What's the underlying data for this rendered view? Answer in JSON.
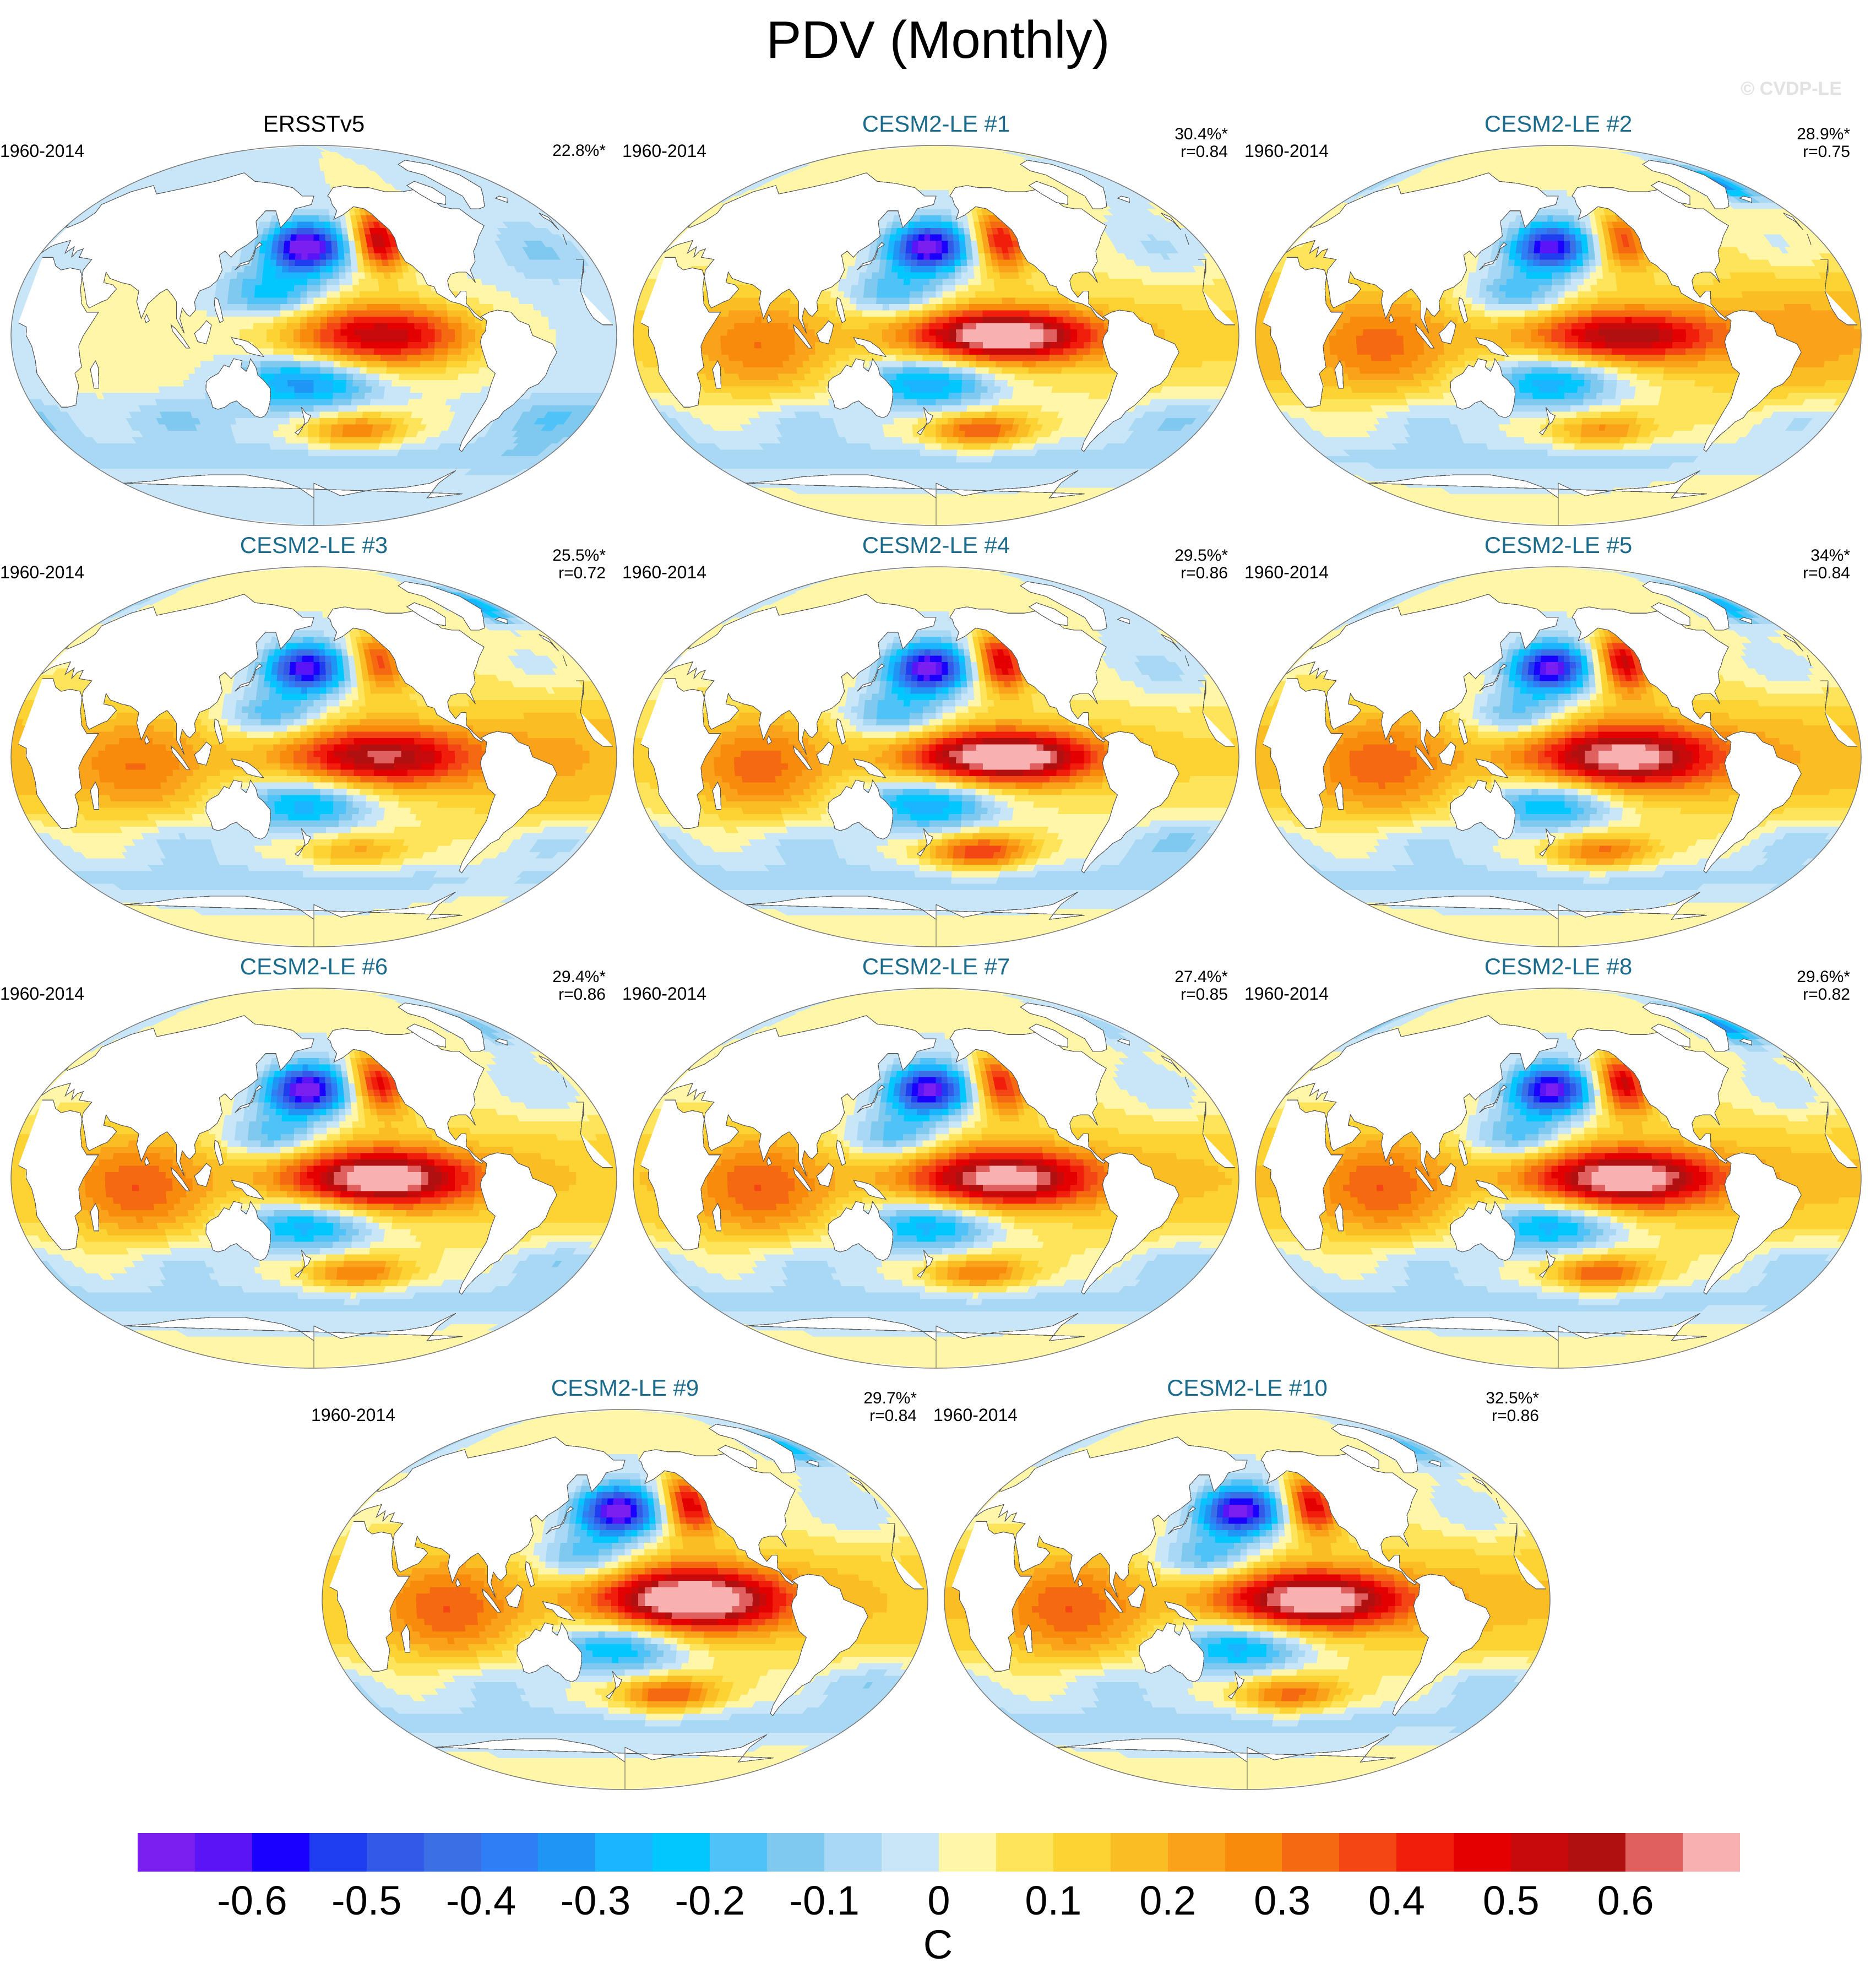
{
  "figure": {
    "title": "PDV (Monthly)",
    "watermark": "© CVDP-LE"
  },
  "panels": [
    {
      "title": "ERSSTv5",
      "kind": "obs",
      "period": "1960-2014",
      "pct": "22.8%*",
      "corr": "",
      "pattern": {
        "np_cold": 0.75,
        "eq_warm": 0.55,
        "np_arc_warm": 0.55,
        "sp_warm": 0.3,
        "indian_warm": 0.05,
        "atl_base": -0.02,
        "tropics_warm": 0.0,
        "eq_width": 11,
        "arctic_cold": 0.0
      }
    },
    {
      "title": "CESM2-LE #1",
      "kind": "model",
      "period": "1960-2014",
      "pct": "30.4%*",
      "corr": "r=0.84",
      "pattern": {
        "np_cold": 0.72,
        "eq_warm": 0.7,
        "np_arc_warm": 0.45,
        "sp_warm": 0.35,
        "indian_warm": 0.22,
        "atl_base": 0.03,
        "tropics_warm": 0.08,
        "eq_width": 9,
        "arctic_cold": 0.05
      }
    },
    {
      "title": "CESM2-LE #2",
      "kind": "model",
      "period": "1960-2014",
      "pct": "28.9%*",
      "corr": "r=0.75",
      "pattern": {
        "np_cold": 0.66,
        "eq_warm": 0.5,
        "np_arc_warm": 0.35,
        "sp_warm": 0.25,
        "indian_warm": 0.22,
        "atl_base": 0.12,
        "tropics_warm": 0.1,
        "eq_width": 9,
        "arctic_cold": 0.35
      }
    },
    {
      "title": "CESM2-LE #3",
      "kind": "model",
      "period": "1960-2014",
      "pct": "25.5%*",
      "corr": "r=0.72",
      "pattern": {
        "np_cold": 0.68,
        "eq_warm": 0.52,
        "np_arc_warm": 0.35,
        "sp_warm": 0.2,
        "indian_warm": 0.2,
        "atl_base": 0.1,
        "tropics_warm": 0.1,
        "eq_width": 10,
        "arctic_cold": 0.3
      }
    },
    {
      "title": "CESM2-LE #4",
      "kind": "model",
      "period": "1960-2014",
      "pct": "29.5%*",
      "corr": "r=0.86",
      "pattern": {
        "np_cold": 0.72,
        "eq_warm": 0.72,
        "np_arc_warm": 0.5,
        "sp_warm": 0.4,
        "indian_warm": 0.25,
        "atl_base": 0.02,
        "tropics_warm": 0.08,
        "eq_width": 9,
        "arctic_cold": 0.05
      }
    },
    {
      "title": "CESM2-LE #5",
      "kind": "model",
      "period": "1960-2014",
      "pct": "34%*",
      "corr": "r=0.84",
      "pattern": {
        "np_cold": 0.7,
        "eq_warm": 0.6,
        "np_arc_warm": 0.5,
        "sp_warm": 0.3,
        "indian_warm": 0.22,
        "atl_base": 0.06,
        "tropics_warm": 0.12,
        "eq_width": 11,
        "arctic_cold": 0.3
      }
    },
    {
      "title": "CESM2-LE #6",
      "kind": "model",
      "period": "1960-2014",
      "pct": "29.4%*",
      "corr": "r=0.86",
      "pattern": {
        "np_cold": 0.74,
        "eq_warm": 0.66,
        "np_arc_warm": 0.45,
        "sp_warm": 0.3,
        "indian_warm": 0.25,
        "atl_base": 0.04,
        "tropics_warm": 0.1,
        "eq_width": 10,
        "arctic_cold": 0.15
      }
    },
    {
      "title": "CESM2-LE #7",
      "kind": "model",
      "period": "1960-2014",
      "pct": "27.4%*",
      "corr": "r=0.85",
      "pattern": {
        "np_cold": 0.7,
        "eq_warm": 0.62,
        "np_arc_warm": 0.42,
        "sp_warm": 0.3,
        "indian_warm": 0.25,
        "atl_base": 0.05,
        "tropics_warm": 0.1,
        "eq_width": 10,
        "arctic_cold": 0.1
      }
    },
    {
      "title": "CESM2-LE #8",
      "kind": "model",
      "period": "1960-2014",
      "pct": "29.6%*",
      "corr": "r=0.82",
      "pattern": {
        "np_cold": 0.7,
        "eq_warm": 0.66,
        "np_arc_warm": 0.5,
        "sp_warm": 0.35,
        "indian_warm": 0.25,
        "atl_base": 0.06,
        "tropics_warm": 0.1,
        "eq_width": 10,
        "arctic_cold": 0.35
      }
    },
    {
      "title": "CESM2-LE #9",
      "kind": "model",
      "period": "1960-2014",
      "pct": "29.7%*",
      "corr": "r=0.84",
      "pattern": {
        "np_cold": 0.74,
        "eq_warm": 0.72,
        "np_arc_warm": 0.48,
        "sp_warm": 0.35,
        "indian_warm": 0.25,
        "atl_base": 0.04,
        "tropics_warm": 0.1,
        "eq_width": 11,
        "arctic_cold": 0.25
      }
    },
    {
      "title": "CESM2-LE #10",
      "kind": "model",
      "period": "1960-2014",
      "pct": "32.5%*",
      "corr": "r=0.86",
      "pattern": {
        "np_cold": 0.72,
        "eq_warm": 0.66,
        "np_arc_warm": 0.48,
        "sp_warm": 0.32,
        "indian_warm": 0.25,
        "atl_base": 0.06,
        "tropics_warm": 0.1,
        "eq_width": 10,
        "arctic_cold": 0.2
      }
    }
  ],
  "colorbar": {
    "units": "C",
    "levels": [
      -0.65,
      -0.6,
      -0.55,
      -0.5,
      -0.45,
      -0.4,
      -0.35,
      -0.3,
      -0.25,
      -0.2,
      -0.15,
      -0.1,
      -0.05,
      0,
      0.05,
      0.1,
      0.15,
      0.2,
      0.25,
      0.3,
      0.35,
      0.4,
      0.45,
      0.5,
      0.55,
      0.6,
      0.65
    ],
    "labels": [
      "-0.6",
      "-0.5",
      "-0.4",
      "-0.3",
      "-0.2",
      "-0.1",
      "0",
      "0.1",
      "0.2",
      "0.3",
      "0.4",
      "0.5",
      "0.6"
    ],
    "label_values": [
      -0.6,
      -0.5,
      -0.4,
      -0.3,
      -0.2,
      -0.1,
      0,
      0.1,
      0.2,
      0.3,
      0.4,
      0.5,
      0.6
    ],
    "colors": [
      "#7b1ff0",
      "#5a14f5",
      "#1a00ff",
      "#1e3ef0",
      "#3359e8",
      "#3a6fe6",
      "#2e7ff5",
      "#1e96f5",
      "#1ab4ff",
      "#00c8ff",
      "#4fc3f7",
      "#7fc8ee",
      "#a8d8f3",
      "#c8e6f8",
      "#fff6a8",
      "#fde45a",
      "#fdd233",
      "#fbbd24",
      "#f9a21a",
      "#f88a0c",
      "#f56a10",
      "#f44614",
      "#f21e0c",
      "#e40000",
      "#c80a0a",
      "#b01010",
      "#e06060",
      "#f8b0b0"
    ]
  }
}
